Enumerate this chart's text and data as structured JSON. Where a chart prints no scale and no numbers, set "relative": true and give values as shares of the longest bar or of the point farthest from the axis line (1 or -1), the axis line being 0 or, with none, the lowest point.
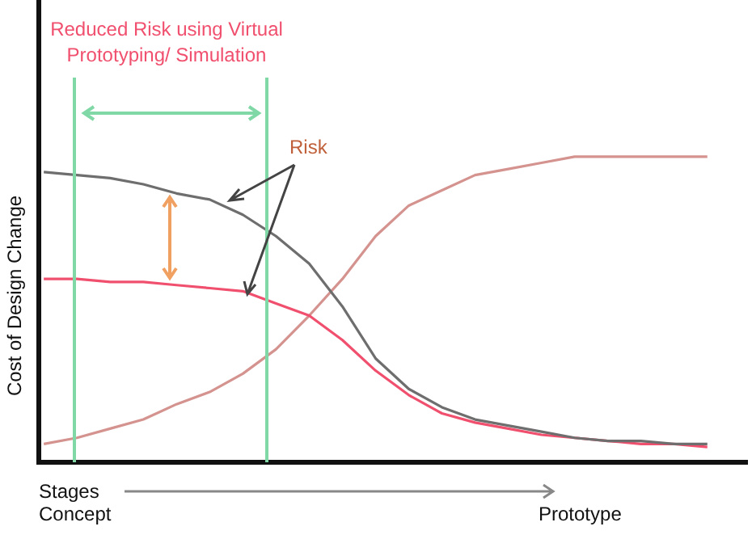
{
  "chart_data": {
    "type": "line",
    "relative": true,
    "ylabel": "Cost of Design Change",
    "xlabel": "Stages",
    "tick_labels": false,
    "grid": false,
    "legend": false,
    "marker": "none",
    "line_style": "solid",
    "categories": [
      null,
      null,
      null,
      null,
      null,
      null,
      null,
      null,
      null,
      null,
      null,
      null,
      null,
      null,
      null,
      null,
      null,
      null,
      null,
      null,
      null
    ],
    "series": [
      {
        "color": "#6e6e6e",
        "values": [
          0.95,
          0.94,
          0.93,
          0.91,
          0.88,
          0.86,
          0.81,
          0.74,
          0.65,
          0.51,
          0.34,
          0.24,
          0.18,
          0.14,
          0.12,
          0.1,
          0.08,
          0.07,
          0.07,
          0.06,
          0.06
        ]
      },
      {
        "color": "#f0506e",
        "values": [
          0.6,
          0.6,
          0.59,
          0.59,
          0.58,
          0.57,
          0.56,
          0.52,
          0.48,
          0.4,
          0.3,
          0.22,
          0.16,
          0.13,
          0.11,
          0.09,
          0.08,
          0.07,
          0.06,
          0.06,
          0.05
        ]
      },
      {
        "color": "#d4938f",
        "values": [
          0.06,
          0.08,
          0.11,
          0.14,
          0.19,
          0.23,
          0.29,
          0.37,
          0.48,
          0.6,
          0.74,
          0.84,
          0.89,
          0.94,
          0.96,
          0.98,
          1,
          1,
          1,
          1,
          1
        ]
      }
    ],
    "annotations": [
      "Reduced Risk using Virtual Prototyping/ Simulation",
      "Risk",
      "Concept",
      "Prototype"
    ]
  }
}
